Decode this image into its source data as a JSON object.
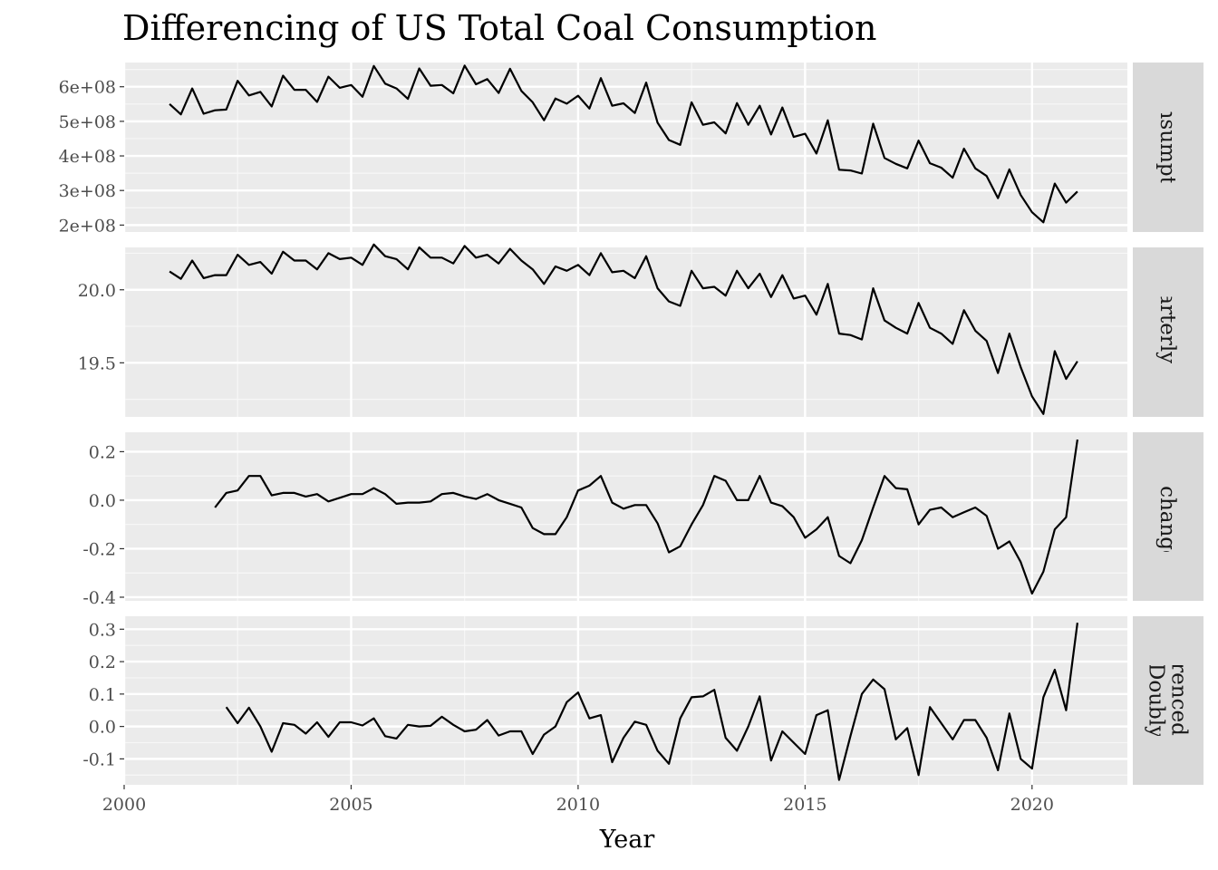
{
  "chart_data": {
    "type": "line",
    "title": "Differencing of US Total Coal Consumption",
    "xlabel": "Year",
    "x_ticks": [
      "2000",
      "2005",
      "2010",
      "2015",
      "2020"
    ],
    "x_range": [
      2000,
      2022.1
    ],
    "x_start": 2001.0,
    "x_step": 0.25,
    "grid": true,
    "panels": [
      {
        "name": "Consumption",
        "strip_lines": [
          "Consumption"
        ],
        "ylim": [
          180000000,
          670000000
        ],
        "y_ticks": [
          200000000,
          300000000,
          400000000,
          500000000,
          600000000
        ],
        "y_tick_labels": [
          "2e+08",
          "3e+08",
          "4e+08",
          "5e+08",
          "6e+08"
        ],
        "values": [
          550000000,
          520000000,
          595000000,
          522000000,
          532000000,
          534000000,
          617000000,
          575000000,
          585000000,
          543000000,
          632000000,
          591000000,
          591000000,
          556000000,
          629000000,
          597000000,
          605000000,
          571000000,
          660000000,
          609000000,
          595000000,
          565000000,
          653000000,
          603000000,
          605000000,
          581000000,
          661000000,
          607000000,
          622000000,
          582000000,
          652000000,
          588000000,
          555000000,
          503000000,
          566000000,
          551000000,
          574000000,
          537000000,
          625000000,
          545000000,
          552000000,
          524000000,
          612000000,
          496000000,
          446000000,
          432000000,
          555000000,
          490000000,
          497000000,
          465000000,
          553000000,
          490000000,
          545000000,
          462000000,
          540000000,
          455000000,
          464000000,
          407000000,
          503000000,
          360000000,
          358000000,
          349000000,
          493000000,
          394000000,
          377000000,
          364000000,
          444000000,
          379000000,
          366000000,
          337000000,
          421000000,
          364000000,
          342000000,
          278000000,
          361000000,
          287000000,
          237000000,
          208000000,
          320000000,
          265000000,
          297000000
        ]
      },
      {
        "name": "Quarterly log",
        "strip_lines": [
          "Quarterly log"
        ],
        "ylim": [
          19.13,
          20.29
        ],
        "y_ticks": [
          19.5,
          20.0
        ],
        "y_tick_labels": [
          "19.5",
          "20.0"
        ],
        "values": [
          20.125,
          20.075,
          20.2,
          20.08,
          20.1,
          20.1,
          20.24,
          20.17,
          20.19,
          20.11,
          20.26,
          20.2,
          20.2,
          20.14,
          20.25,
          20.21,
          20.22,
          20.17,
          20.31,
          20.23,
          20.21,
          20.14,
          20.29,
          20.22,
          20.22,
          20.18,
          20.3,
          20.22,
          20.24,
          20.18,
          20.28,
          20.2,
          20.14,
          20.04,
          20.16,
          20.13,
          20.17,
          20.1,
          20.25,
          20.12,
          20.13,
          20.08,
          20.23,
          20.01,
          19.92,
          19.89,
          20.13,
          20.01,
          20.02,
          19.96,
          20.13,
          20.01,
          20.11,
          19.95,
          20.1,
          19.94,
          19.96,
          19.83,
          20.04,
          19.7,
          19.69,
          19.66,
          20.01,
          19.79,
          19.74,
          19.7,
          19.91,
          19.74,
          19.7,
          19.63,
          19.86,
          19.72,
          19.65,
          19.43,
          19.7,
          19.47,
          19.27,
          19.15,
          19.58,
          19.39,
          19.51
        ]
      },
      {
        "name": "Annual change in log",
        "strip_lines": [
          "Annual change in log"
        ],
        "ylim": [
          -0.415,
          0.28
        ],
        "y_ticks": [
          -0.4,
          -0.2,
          0.0,
          0.2
        ],
        "y_tick_labels": [
          "-0.4",
          "-0.2",
          "0.0",
          "0.2"
        ],
        "values": [
          null,
          null,
          null,
          null,
          -0.03,
          0.03,
          0.04,
          0.1,
          0.1,
          0.02,
          0.03,
          0.03,
          0.015,
          0.025,
          -0.005,
          0.01,
          0.025,
          0.025,
          0.05,
          0.025,
          -0.015,
          -0.01,
          -0.01,
          -0.005,
          0.025,
          0.03,
          0.015,
          0.005,
          0.025,
          0.0,
          -0.015,
          -0.03,
          -0.115,
          -0.14,
          -0.14,
          -0.07,
          0.04,
          0.06,
          0.1,
          -0.01,
          -0.035,
          -0.02,
          -0.02,
          -0.095,
          -0.215,
          -0.19,
          -0.1,
          -0.02,
          0.1,
          0.08,
          0.0,
          0.0,
          0.1,
          -0.01,
          -0.025,
          -0.07,
          -0.155,
          -0.12,
          -0.07,
          -0.23,
          -0.26,
          -0.165,
          -0.03,
          0.1,
          0.05,
          0.045,
          -0.1,
          -0.04,
          -0.03,
          -0.07,
          -0.05,
          -0.03,
          -0.065,
          -0.2,
          -0.17,
          -0.255,
          -0.385,
          -0.295,
          -0.12,
          -0.07,
          0.25
        ]
      },
      {
        "name": "Doubly differenced logs",
        "strip_lines": [
          "Doubly",
          "differenced logs"
        ],
        "ylim": [
          -0.18,
          0.34
        ],
        "y_ticks": [
          -0.1,
          0.0,
          0.1,
          0.2,
          0.3
        ],
        "y_tick_labels": [
          "-0.1",
          "0.0",
          "0.1",
          "0.2",
          "0.3"
        ],
        "values": [
          null,
          null,
          null,
          null,
          null,
          0.06,
          0.01,
          0.058,
          0.0,
          -0.078,
          0.01,
          0.005,
          -0.022,
          0.013,
          -0.032,
          0.013,
          0.013,
          0.003,
          0.025,
          -0.03,
          -0.037,
          0.005,
          0.0,
          0.002,
          0.03,
          0.005,
          -0.015,
          -0.01,
          0.02,
          -0.028,
          -0.015,
          -0.015,
          -0.085,
          -0.025,
          0.0,
          0.075,
          0.105,
          0.025,
          0.035,
          -0.11,
          -0.035,
          0.015,
          0.005,
          -0.075,
          -0.115,
          0.025,
          0.09,
          0.093,
          0.113,
          -0.035,
          -0.075,
          0.0,
          0.093,
          -0.105,
          -0.015,
          -0.05,
          -0.085,
          0.035,
          0.05,
          -0.165,
          -0.03,
          0.1,
          0.145,
          0.115,
          -0.04,
          -0.005,
          -0.15,
          0.06,
          0.01,
          -0.04,
          0.02,
          0.02,
          -0.035,
          -0.135,
          0.04,
          -0.1,
          -0.13,
          0.09,
          0.175,
          0.05,
          0.32
        ]
      }
    ]
  }
}
